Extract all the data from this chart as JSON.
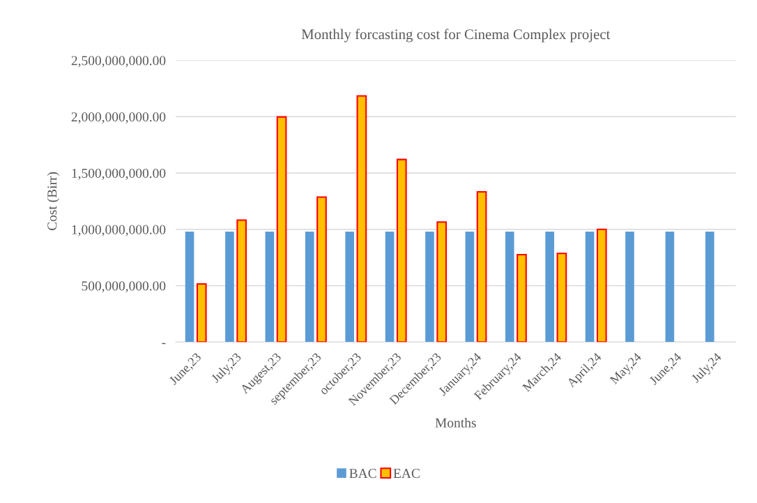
{
  "chart_data": {
    "type": "bar",
    "title": "Monthly forcasting cost for Cinema Complex project",
    "xlabel": "Months",
    "ylabel": "Cost (Birr)",
    "categories": [
      "June,23",
      "July,23",
      "Augest,23",
      "september,23",
      "october,23",
      "November,23",
      "December,23",
      "January,24",
      "February,24",
      "March,24",
      "April,24",
      "May,24",
      "June,24",
      "July,24"
    ],
    "series": [
      {
        "name": "BAC",
        "color": "#5b9bd5",
        "values": [
          980000000,
          980000000,
          980000000,
          980000000,
          980000000,
          980000000,
          980000000,
          980000000,
          980000000,
          980000000,
          980000000,
          980000000,
          980000000,
          980000000
        ]
      },
      {
        "name": "EAC",
        "color": "#ffc000",
        "values": [
          516000000,
          1082000000,
          1998000000,
          1287000000,
          2184000000,
          1620000000,
          1065000000,
          1333000000,
          776000000,
          787000000,
          1000000000,
          null,
          null,
          null
        ]
      }
    ],
    "ylim": [
      0,
      2500000000
    ],
    "yticks": [
      {
        "value": 0,
        "label": "-"
      },
      {
        "value": 500000000,
        "label": "500,000,000.00"
      },
      {
        "value": 1000000000,
        "label": "1,000,000,000.00"
      },
      {
        "value": 1500000000,
        "label": "1,500,000,000.00"
      },
      {
        "value": 2000000000,
        "label": "2,000,000,000.00"
      },
      {
        "value": 2500000000,
        "label": "2,500,000,000.00"
      }
    ],
    "grid": "y",
    "legend": "bottom"
  }
}
